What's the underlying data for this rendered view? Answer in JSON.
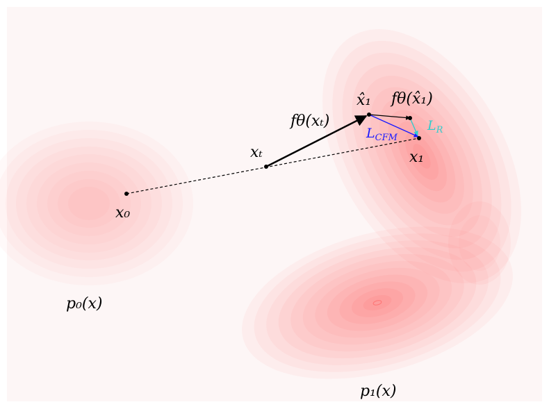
{
  "colors": {
    "background": "#fdf6f6",
    "density": "#ff4d4d",
    "flow_arrow": "#000000",
    "cfm_loss": "#1a1aff",
    "r_loss": "#33cccc",
    "points": "#000000"
  },
  "labels": {
    "x0": "x₀",
    "xt": "xₜ",
    "x1": "x₁",
    "x1_hat": "x̂₁",
    "f_xt": "fθ(xₜ)",
    "f_x1_hat": "fθ(x̂₁)",
    "L_cfm": "L_CFM",
    "L_cfm_main": "L",
    "L_cfm_sub": "CFM",
    "L_r_main": "L",
    "L_r_sub": "R",
    "p0": "p₀(x)",
    "p1": "p₁(x)"
  }
}
